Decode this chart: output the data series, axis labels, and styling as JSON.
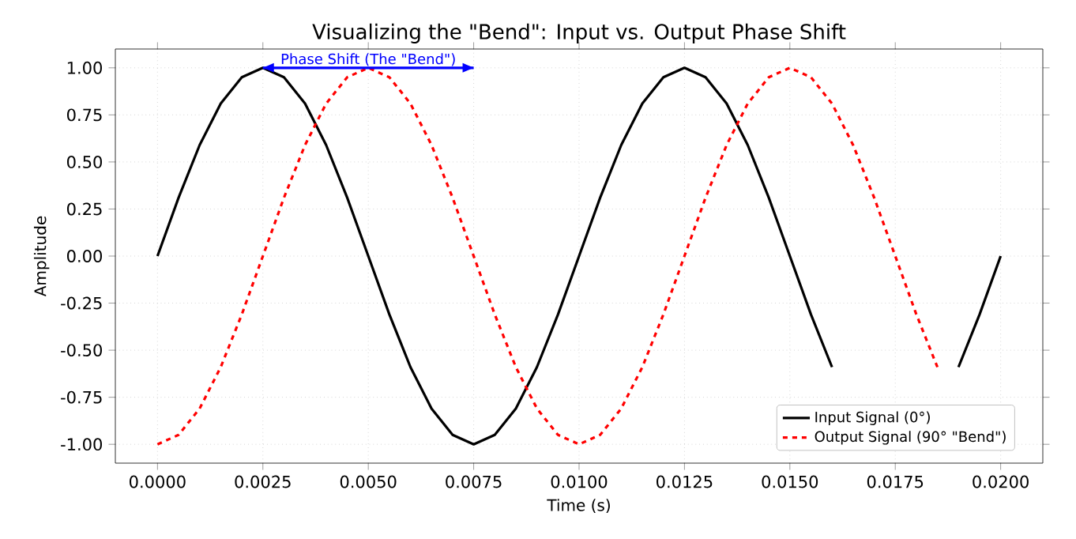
{
  "chart_data": {
    "type": "line",
    "title": "Visualizing the \"Bend\": Input vs. Output Phase Shift",
    "xlabel": "Time (s)",
    "ylabel": "Amplitude",
    "x": [
      0,
      0.0005,
      0.001,
      0.0015,
      0.002,
      0.0025,
      0.003,
      0.0035,
      0.004,
      0.0045,
      0.005,
      0.0055,
      0.006,
      0.0065,
      0.007,
      0.0075,
      0.008,
      0.0085,
      0.009,
      0.0095,
      0.01,
      0.0105,
      0.011,
      0.0115,
      0.012,
      0.0125,
      0.013,
      0.0135,
      0.014,
      0.0145,
      0.015,
      0.0155,
      0.016,
      0.0165,
      0.017,
      0.0175,
      0.018,
      0.0185,
      0.019,
      0.0195,
      0.02
    ],
    "series": [
      {
        "name": "Input Signal (0°)",
        "color": "#000000",
        "line_style": "solid",
        "values": [
          0,
          0.31,
          0.59,
          0.81,
          0.95,
          1,
          0.95,
          0.81,
          0.59,
          0.31,
          0,
          -0.31,
          -0.59,
          -0.81,
          -0.95,
          -1,
          -0.95,
          -0.81,
          -0.59,
          -0.31,
          0,
          0.31,
          0.59,
          0.81,
          0.95,
          1,
          0.95,
          0.81,
          0.59,
          0.31,
          0,
          -0.31,
          -0.59,
          null,
          null,
          null,
          null,
          null,
          -0.59,
          -0.31,
          0
        ]
      },
      {
        "name": "Output Signal (90° \"Bend\")",
        "color": "#ff0000",
        "line_style": "dashed",
        "values": [
          -1,
          -0.95,
          -0.81,
          -0.59,
          -0.31,
          0,
          0.31,
          0.59,
          0.81,
          0.95,
          1,
          0.95,
          0.81,
          0.59,
          0.31,
          0,
          -0.31,
          -0.59,
          -0.81,
          -0.95,
          -1,
          -0.95,
          -0.81,
          -0.59,
          -0.31,
          0,
          0.31,
          0.59,
          0.81,
          0.95,
          1,
          0.95,
          0.81,
          0.59,
          0.31,
          0,
          -0.31,
          -0.59,
          null,
          null,
          null
        ]
      },
      {
        "type": "line",
        "color": "#0000ff",
        "line_style": "solid",
        "x": [
          0.0025,
          0.0075
        ],
        "values": [
          1,
          1
        ]
      }
    ],
    "annotations": [
      {
        "text": "Phase Shift (The \"Bend\")",
        "x": 0.005,
        "y": 1.0
      }
    ],
    "xlim": [
      -0.001,
      0.021
    ],
    "ylim": [
      -1.1,
      1.1
    ],
    "xticks": [
      {
        "value": 0,
        "label": "0.0000"
      },
      {
        "value": 0.0025,
        "label": "0.0025"
      },
      {
        "value": 0.005,
        "label": "0.0050"
      },
      {
        "value": 0.0075,
        "label": "0.0075"
      },
      {
        "value": 0.01,
        "label": "0.0100"
      },
      {
        "value": 0.0125,
        "label": "0.0125"
      },
      {
        "value": 0.015,
        "label": "0.0150"
      },
      {
        "value": 0.0175,
        "label": "0.0175"
      },
      {
        "value": 0.02,
        "label": "0.0200"
      }
    ],
    "yticks": [
      {
        "value": 1,
        "label": "1.00"
      },
      {
        "value": 0.75,
        "label": "0.75"
      },
      {
        "value": 0.5,
        "label": "0.50"
      },
      {
        "value": 0.25,
        "label": "0.25"
      },
      {
        "value": 0,
        "label": "0.00"
      },
      {
        "value": -0.25,
        "label": "-0.25"
      },
      {
        "value": -0.5,
        "label": "-0.50"
      },
      {
        "value": -0.75,
        "label": "-0.75"
      },
      {
        "value": -1,
        "label": "-1.00"
      }
    ],
    "grid": true,
    "legend": "bottom right"
  }
}
